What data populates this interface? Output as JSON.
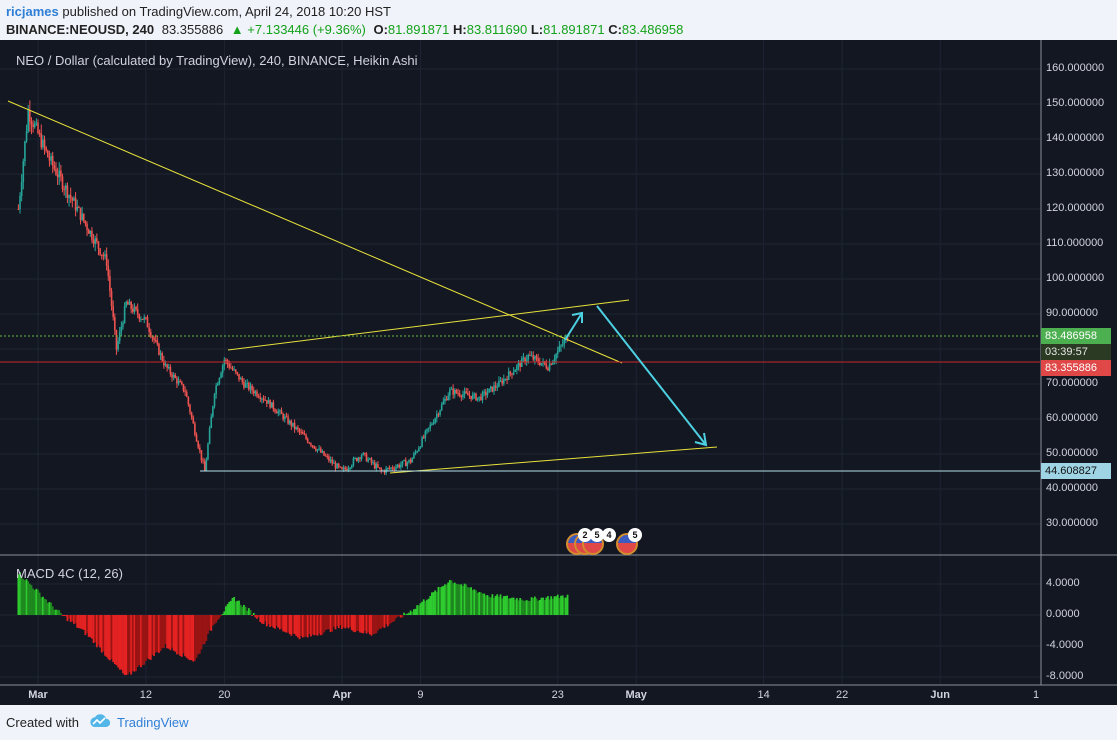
{
  "header": {
    "username": "ricjames",
    "published_text": "published on TradingView.com, April 24, 2018 10:20 HST",
    "symbol": "BINANCE:NEOUSD, 240",
    "last": "83.355886",
    "change": "+7.133446 (+9.36%)",
    "o_label": "O:",
    "o_value": "81.891871",
    "h_label": "H:",
    "h_value": "83.811690",
    "l_label": "L:",
    "l_value": "81.891871",
    "c_label": "C:",
    "c_value": "83.486958"
  },
  "chart_title": "NEO / Dollar (calculated by TradingView), 240, BINANCE, Heikin Ashi",
  "macd_label": "MACD 4C (12, 26)",
  "price_axis": [
    "160.000000",
    "150.000000",
    "140.000000",
    "130.000000",
    "120.000000",
    "110.000000",
    "100.000000",
    "90.000000",
    "70.000000",
    "60.000000",
    "50.000000",
    "40.000000",
    "30.000000"
  ],
  "price_badges": {
    "current": "83.486958",
    "countdown": "03:39:57",
    "previous": "83.355886",
    "support": "44.608827"
  },
  "macd_axis": [
    "4.0000",
    "0.0000",
    "-4.0000",
    "-8.0000"
  ],
  "time_axis": [
    "Mar",
    "12",
    "20",
    "Apr",
    "9",
    "23",
    "May",
    "14",
    "22",
    "Jun",
    "1"
  ],
  "event_badges": [
    "2",
    "5",
    "4",
    "5"
  ],
  "footer": {
    "created_with": "Created with",
    "brand": "TradingView"
  },
  "colors": {
    "background": "#131722",
    "up": "#26a69a",
    "down": "#ef5350",
    "trendline": "#e8e23b",
    "arrow": "#4dd0e1",
    "macd_green": "#2ecc2e",
    "macd_red": "#e52222"
  },
  "chart_data": {
    "type": "candlestick",
    "title": "NEO / Dollar (calculated by TradingView), 240, BINANCE, Heikin Ashi",
    "ylim": [
      20,
      165
    ],
    "x_ticks": [
      "Mar",
      "12",
      "20",
      "Apr",
      "9",
      "23",
      "May",
      "14",
      "22",
      "Jun",
      "1"
    ],
    "price_path": [
      [
        "Feb 27",
        120
      ],
      [
        "Feb 28",
        148
      ],
      [
        "Mar 2",
        135
      ],
      [
        "Mar 4",
        125
      ],
      [
        "Mar 6",
        115
      ],
      [
        "Mar 8",
        105
      ],
      [
        "Mar 9",
        80
      ],
      [
        "Mar 10",
        93
      ],
      [
        "Mar 12",
        88
      ],
      [
        "Mar 14",
        75
      ],
      [
        "Mar 16",
        68
      ],
      [
        "Mar 18",
        45
      ],
      [
        "Mar 19",
        68
      ],
      [
        "Mar 20",
        77
      ],
      [
        "Mar 22",
        70
      ],
      [
        "Mar 24",
        66
      ],
      [
        "Mar 27",
        58
      ],
      [
        "Mar 30",
        50
      ],
      [
        "Apr 1",
        45
      ],
      [
        "Apr 3",
        50
      ],
      [
        "Apr 5",
        45
      ],
      [
        "Apr 8",
        48
      ],
      [
        "Apr 10",
        58
      ],
      [
        "Apr 12",
        68
      ],
      [
        "Apr 15",
        66
      ],
      [
        "Apr 17",
        70
      ],
      [
        "Apr 20",
        78
      ],
      [
        "Apr 22",
        75
      ],
      [
        "Apr 24",
        83.49
      ]
    ],
    "support_level": 44.608827,
    "last_close": 83.486958,
    "previous_close": 83.355886,
    "macd": {
      "name": "MACD 4C (12, 26)",
      "ylim": [
        -9,
        6
      ],
      "path": [
        [
          "Feb 27",
          5.5
        ],
        [
          "Mar 3",
          0.5
        ],
        [
          "Mar 6",
          -2.5
        ],
        [
          "Mar 10",
          -8
        ],
        [
          "Mar 14",
          -4
        ],
        [
          "Mar 17",
          -6
        ],
        [
          "Mar 19",
          -1
        ],
        [
          "Mar 21",
          2.2
        ],
        [
          "Mar 24",
          -1
        ],
        [
          "Mar 28",
          -3
        ],
        [
          "Apr 1",
          -1.5
        ],
        [
          "Apr 4",
          -2.5
        ],
        [
          "Apr 8",
          0.5
        ],
        [
          "Apr 12",
          4.5
        ],
        [
          "Apr 16",
          2.5
        ],
        [
          "Apr 20",
          2.0
        ],
        [
          "Apr 24",
          2.5
        ]
      ]
    }
  }
}
